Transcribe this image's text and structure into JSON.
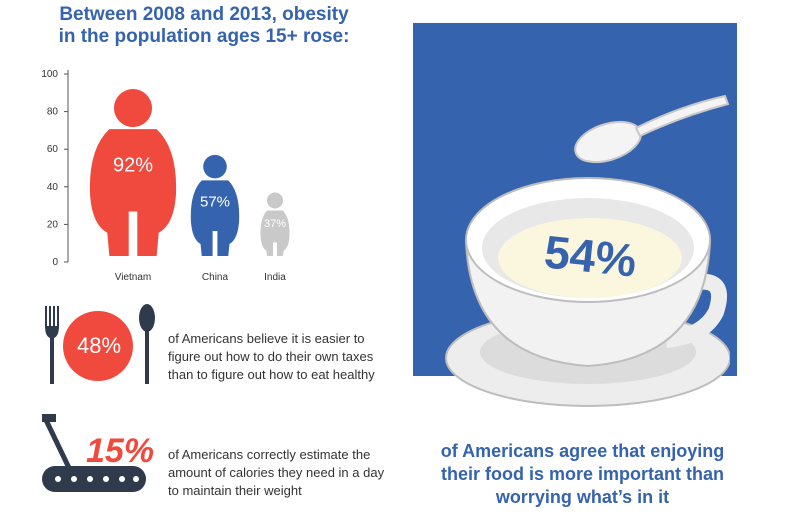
{
  "headline": {
    "line1": "Between 2008 and 2013, obesity",
    "line2": "in the population ages 15+ rose:"
  },
  "chart_data": {
    "type": "bar",
    "categories": [
      "Vietnam",
      "China",
      "India"
    ],
    "values": [
      92,
      57,
      37
    ],
    "value_labels": [
      "92%",
      "57%",
      "37%"
    ],
    "ylim": [
      0,
      100
    ],
    "yticks": [
      0,
      20,
      40,
      60,
      80,
      100
    ],
    "title": "Between 2008 and 2013, obesity in the population ages 15+ rose:",
    "xlabel": "",
    "ylabel": "",
    "colors": [
      "#f04a3e",
      "#3563ae",
      "#c9c9c9"
    ],
    "grid": false,
    "mark_style": "person silhouettes"
  },
  "facts": [
    {
      "value": "48%",
      "icon": "fork-knife-spoon-icon",
      "lines": [
        "of Americans believe it is easier to",
        "figure out how to do their own taxes",
        "than to figure out how to eat healthy"
      ]
    },
    {
      "value": "15%",
      "icon": "treadmill-icon",
      "lines": [
        "of Americans correctly estimate the",
        "amount of calories they need in a day",
        "to maintain their weight"
      ]
    }
  ],
  "bowl": {
    "value": "54%",
    "caption_lines": [
      "of Americans agree that enjoying",
      "their food is more important than",
      "worrying what’s in it"
    ]
  },
  "colors": {
    "brand_blue": "#3563ae",
    "accent_red": "#f04a3e",
    "gray": "#c9c9c9",
    "dark": "#2f3b4c"
  }
}
